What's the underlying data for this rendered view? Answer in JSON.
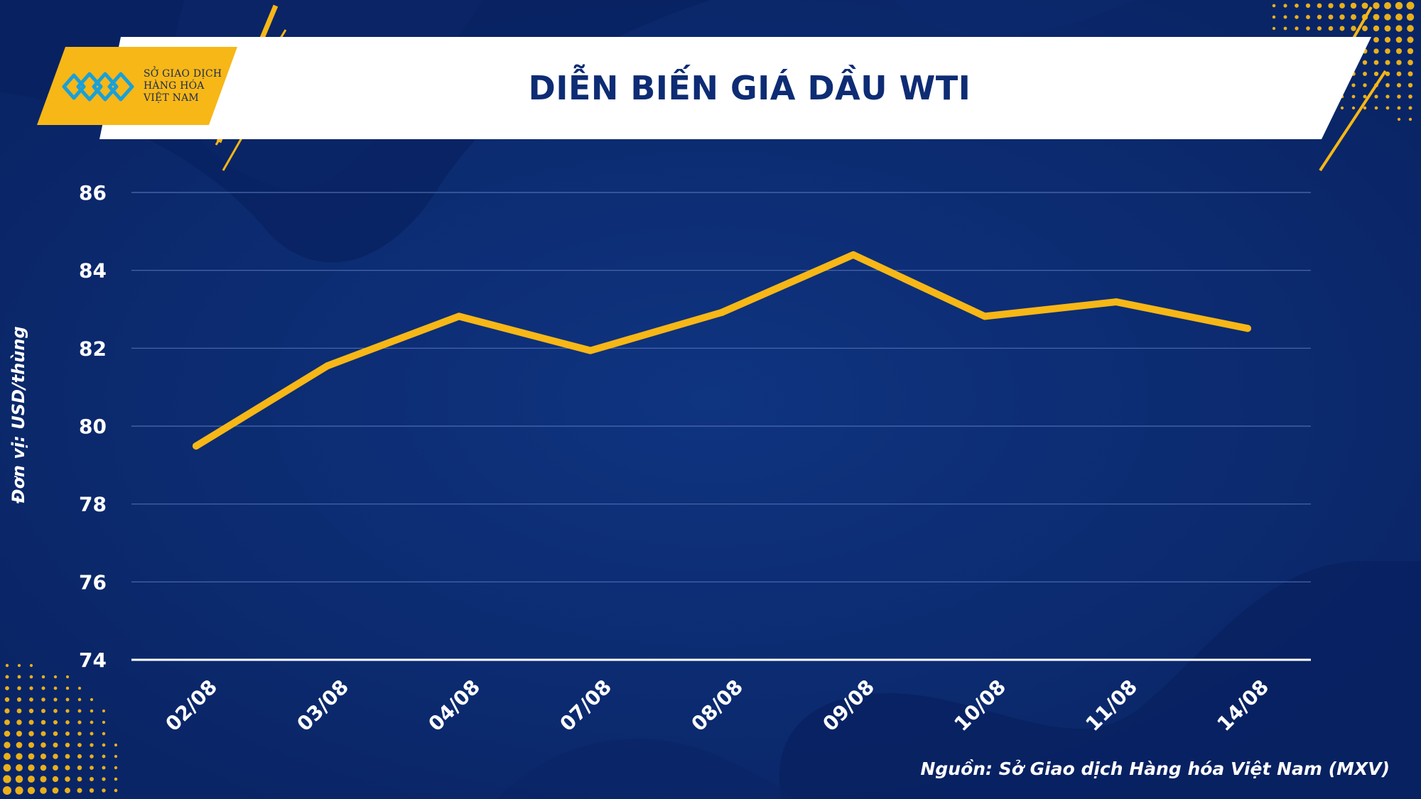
{
  "header": {
    "title": "DIỄN BIẾN GIÁ DẦU WTI"
  },
  "logo": {
    "icon": "mxv-logo-icon",
    "lines": [
      "SỞ GIAO DỊCH",
      "HÀNG HÓA",
      "VIỆT NAM"
    ]
  },
  "source": "Nguồn: Sở Giao dịch Hàng hóa Việt Nam (MXV)",
  "colors": {
    "background": "#0b2a6b",
    "line": "#f7b716",
    "accent": "#f7b716",
    "text": "#ffffff"
  },
  "chart_data": {
    "type": "line",
    "title": "DIỄN BIẾN GIÁ DẦU WTI",
    "xlabel": "",
    "ylabel": "Đơn vị: USD/thùng",
    "categories": [
      "02/08",
      "03/08",
      "04/08",
      "07/08",
      "08/08",
      "09/08",
      "10/08",
      "11/08",
      "14/08"
    ],
    "series": [
      {
        "values": [
          79.49,
          81.55,
          82.82,
          81.94,
          82.92,
          84.4,
          82.82,
          83.19,
          82.51
        ]
      }
    ],
    "ylim": [
      74,
      86
    ],
    "yticks": [
      74,
      76,
      78,
      80,
      82,
      84,
      86
    ],
    "grid": true,
    "legend": "none"
  }
}
